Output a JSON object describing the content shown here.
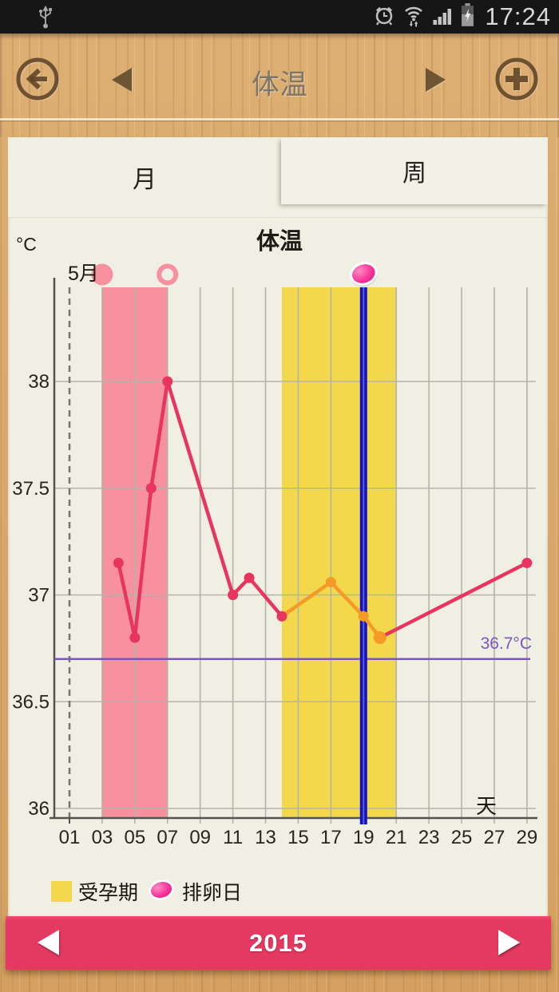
{
  "colors": {
    "panel_bg": "#f0efe3",
    "status_bg": "#161616",
    "pink_line": "#e8355f",
    "orange_line": "#f59a28",
    "pink_region": "#f7919f",
    "yellow_region": "#f3d84b",
    "blue_line": "#1513bb",
    "blue_line_core": "#5c5ce0",
    "purple": "#7a55c5",
    "grid": "#b5b4a8",
    "axis": "#55544e",
    "footer_bg": "#e43a61",
    "icon_brown": "#604526"
  },
  "status_bar": {
    "time": "17:24"
  },
  "header": {
    "title": "体温"
  },
  "tabs": [
    {
      "label": "月",
      "selected": true
    },
    {
      "label": "周",
      "selected": false
    }
  ],
  "chart_data": {
    "type": "line",
    "title": "体温",
    "y_unit_label": "°C",
    "month_label": "5月",
    "x_axis_label": "天",
    "grid": true,
    "ylim": [
      35.96,
      38.44
    ],
    "xlim": [
      1,
      29
    ],
    "x_ticks": [
      {
        "day": 1,
        "label": "01"
      },
      {
        "day": 3,
        "label": "03"
      },
      {
        "day": 5,
        "label": "05"
      },
      {
        "day": 7,
        "label": "07"
      },
      {
        "day": 9,
        "label": "09"
      },
      {
        "day": 11,
        "label": "11"
      },
      {
        "day": 13,
        "label": "13"
      },
      {
        "day": 15,
        "label": "15"
      },
      {
        "day": 17,
        "label": "17"
      },
      {
        "day": 19,
        "label": "19"
      },
      {
        "day": 21,
        "label": "21"
      },
      {
        "day": 23,
        "label": "23"
      },
      {
        "day": 25,
        "label": "25"
      },
      {
        "day": 27,
        "label": "27"
      },
      {
        "day": 29,
        "label": "29"
      }
    ],
    "y_ticks": [
      {
        "value": 38,
        "label": "38"
      },
      {
        "value": 37.5,
        "label": "37.5"
      },
      {
        "value": 37,
        "label": "37"
      },
      {
        "value": 36.5,
        "label": "36.5"
      },
      {
        "value": 36,
        "label": "36"
      }
    ],
    "dashed_vline_day": 1,
    "regions": [
      {
        "name": "period-region",
        "from_day": 3,
        "to_day": 7,
        "color_key": "pink_region"
      },
      {
        "name": "fertile-region",
        "from_day": 14,
        "to_day": 21,
        "color_key": "yellow_region"
      }
    ],
    "ovulation_vline_day": 19,
    "reference_line": {
      "value": 36.7,
      "label": "36.7°C"
    },
    "markers": [
      {
        "type": "filled-circle",
        "day": 3,
        "name": "period-start-marker"
      },
      {
        "type": "ring",
        "day": 7,
        "name": "period-end-marker"
      },
      {
        "type": "ball",
        "day": 19,
        "name": "ovulation-day-marker"
      }
    ],
    "points": [
      {
        "day": 4,
        "temp": 37.15,
        "dot": "pink_line"
      },
      {
        "day": 5,
        "temp": 36.8,
        "dot": "pink_line"
      },
      {
        "day": 6,
        "temp": 37.5,
        "dot": "pink_line"
      },
      {
        "day": 7,
        "temp": 38.0,
        "dot": "pink_line"
      },
      {
        "day": 11,
        "temp": 37.0,
        "dot": "pink_line"
      },
      {
        "day": 12,
        "temp": 37.08,
        "dot": "pink_line"
      },
      {
        "day": 14,
        "temp": 36.9,
        "dot": "pink_line"
      },
      {
        "day": 17,
        "temp": 37.06,
        "dot": "orange_line"
      },
      {
        "day": 19,
        "temp": 36.9,
        "dot": "orange_line"
      },
      {
        "day": 20,
        "temp": 36.8,
        "dot": "orange_line",
        "big": true
      },
      {
        "day": 29,
        "temp": 37.15,
        "dot": "pink_line"
      }
    ],
    "segments": [
      {
        "from_index": 0,
        "to_index": 6,
        "color_key": "pink_line"
      },
      {
        "from_index": 6,
        "to_index": 9,
        "color_key": "orange_line"
      },
      {
        "from_index": 9,
        "to_index": 10,
        "color_key": "pink_line"
      }
    ]
  },
  "legend": [
    {
      "label": "受孕期",
      "swatch": "yellow-square"
    },
    {
      "label": "排卵日",
      "swatch": "pink-ball"
    }
  ],
  "footer": {
    "year": "2015"
  }
}
